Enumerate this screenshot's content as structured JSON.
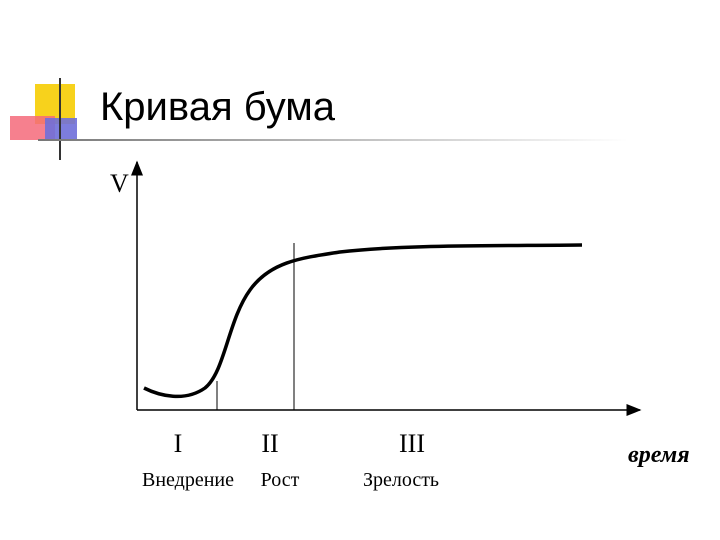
{
  "title": "Кривая бума",
  "y_axis_label": "V",
  "x_axis_label": "время",
  "stages": [
    {
      "numeral": "I",
      "name": "Внедрение"
    },
    {
      "numeral": "II",
      "name": "Рост"
    },
    {
      "numeral": "III",
      "name": "Зрелость"
    }
  ]
}
